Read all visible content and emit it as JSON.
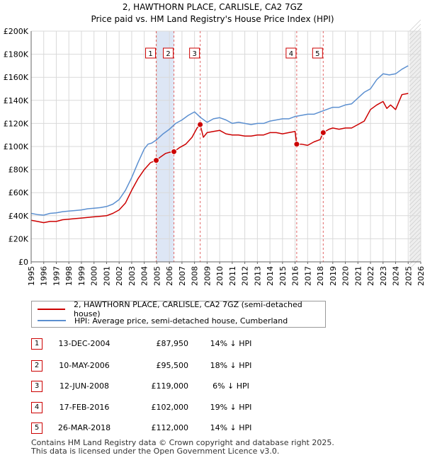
{
  "chart_data": {
    "type": "line",
    "title": "2, HAWTHORN PLACE, CARLISLE, CA2 7GZ",
    "subtitle": "Price paid vs. HM Land Registry's House Price Index (HPI)",
    "xlabel": "",
    "ylabel": "",
    "xlim": [
      1995,
      2026
    ],
    "ylim": [
      0,
      200000
    ],
    "x_ticks": [
      "1995",
      "1996",
      "1997",
      "1998",
      "1999",
      "2000",
      "2001",
      "2002",
      "2003",
      "2004",
      "2005",
      "2006",
      "2007",
      "2008",
      "2009",
      "2010",
      "2011",
      "2012",
      "2013",
      "2014",
      "2015",
      "2016",
      "2017",
      "2018",
      "2019",
      "2020",
      "2021",
      "2022",
      "2023",
      "2024",
      "2025",
      "2026"
    ],
    "y_ticks": [
      {
        "value": 0,
        "label": "£0"
      },
      {
        "value": 20000,
        "label": "£20K"
      },
      {
        "value": 40000,
        "label": "£40K"
      },
      {
        "value": 60000,
        "label": "£60K"
      },
      {
        "value": 80000,
        "label": "£80K"
      },
      {
        "value": 100000,
        "label": "£100K"
      },
      {
        "value": 120000,
        "label": "£120K"
      },
      {
        "value": 140000,
        "label": "£140K"
      },
      {
        "value": 160000,
        "label": "£160K"
      },
      {
        "value": 180000,
        "label": "£180K"
      },
      {
        "value": 200000,
        "label": "£200K"
      }
    ],
    "grid": true,
    "highlight_bands": [
      [
        2004.95,
        2006.36
      ]
    ],
    "future_region_start": 2025.1,
    "series": [
      {
        "name": "2, HAWTHORN PLACE, CARLISLE, CA2 7GZ (semi-detached house)",
        "color": "#cc0000",
        "x": [
          1995,
          1995.5,
          1996,
          1996.5,
          1997,
          1997.5,
          1998,
          1998.5,
          1999,
          1999.5,
          2000,
          2000.5,
          2001,
          2001.5,
          2002,
          2002.5,
          2003,
          2003.5,
          2004,
          2004.5,
          2004.95,
          2005.3,
          2005.7,
          2006,
          2006.36,
          2006.8,
          2007.3,
          2007.8,
          2008.2,
          2008.45,
          2008.7,
          2009,
          2009.5,
          2010,
          2010.5,
          2011,
          2011.5,
          2012,
          2012.5,
          2013,
          2013.5,
          2014,
          2014.5,
          2015,
          2015.5,
          2016.0,
          2016.13,
          2016.5,
          2017,
          2017.5,
          2018.0,
          2018.24,
          2018.7,
          2019,
          2019.5,
          2020,
          2020.5,
          2021,
          2021.5,
          2022,
          2022.5,
          2023,
          2023.3,
          2023.6,
          2024,
          2024.5,
          2025
        ],
        "y": [
          36000,
          35000,
          34000,
          35000,
          35000,
          36500,
          37000,
          37500,
          38000,
          38500,
          39000,
          39500,
          40000,
          42000,
          45000,
          51000,
          62000,
          72000,
          80000,
          86000,
          87950,
          91000,
          94000,
          95000,
          95500,
          99000,
          102000,
          108000,
          116000,
          119000,
          108000,
          112000,
          113000,
          114000,
          111000,
          110000,
          110000,
          109000,
          109000,
          110000,
          110000,
          112000,
          112000,
          111000,
          112000,
          113000,
          102000,
          102000,
          101000,
          104000,
          106000,
          112000,
          115000,
          116000,
          115000,
          116000,
          116000,
          119000,
          122000,
          132000,
          136000,
          139000,
          133000,
          136000,
          132000,
          145000,
          146000
        ]
      },
      {
        "name": "HPI: Average price, semi-detached house, Cumberland",
        "color": "#5b8fd0",
        "x": [
          1995,
          1995.5,
          1996,
          1996.5,
          1997,
          1997.5,
          1998,
          1998.5,
          1999,
          1999.5,
          2000,
          2000.5,
          2001,
          2001.5,
          2002,
          2002.5,
          2003,
          2003.5,
          2004,
          2004.3,
          2004.6,
          2005,
          2005.5,
          2006,
          2006.5,
          2007,
          2007.5,
          2008,
          2008.5,
          2009,
          2009.5,
          2010,
          2010.5,
          2011,
          2011.5,
          2012,
          2012.5,
          2013,
          2013.5,
          2014,
          2014.5,
          2015,
          2015.5,
          2016,
          2016.5,
          2017,
          2017.5,
          2018,
          2018.5,
          2019,
          2019.5,
          2020,
          2020.5,
          2021,
          2021.5,
          2022,
          2022.5,
          2023,
          2023.5,
          2024,
          2024.5,
          2025
        ],
        "y": [
          42000,
          41000,
          40500,
          42000,
          42500,
          43500,
          44000,
          44500,
          45000,
          46000,
          46500,
          47000,
          48000,
          50000,
          54000,
          62000,
          73000,
          86000,
          98000,
          102000,
          103000,
          106000,
          111000,
          115000,
          120000,
          123000,
          127000,
          130000,
          125000,
          121000,
          124000,
          125000,
          123000,
          120000,
          121000,
          120000,
          119000,
          120000,
          120000,
          122000,
          123000,
          124000,
          124000,
          126000,
          127000,
          128000,
          128000,
          130000,
          132000,
          134000,
          134000,
          136000,
          137000,
          142000,
          147000,
          150000,
          158000,
          163000,
          162000,
          163000,
          167000,
          170000
        ]
      }
    ],
    "transactions": [
      {
        "num": "1",
        "date": "13-DEC-2004",
        "price": "£87,950",
        "hpi": "14% ↓ HPI",
        "x": 2004.95,
        "y": 87950
      },
      {
        "num": "2",
        "date": "10-MAY-2006",
        "price": "£95,500",
        "hpi": "18% ↓ HPI",
        "x": 2006.36,
        "y": 95500
      },
      {
        "num": "3",
        "date": "12-JUN-2008",
        "price": "£119,000",
        "hpi": "6% ↓ HPI",
        "x": 2008.45,
        "y": 119000
      },
      {
        "num": "4",
        "date": "17-FEB-2016",
        "price": "£102,000",
        "hpi": "19% ↓ HPI",
        "x": 2016.13,
        "y": 102000
      },
      {
        "num": "5",
        "date": "26-MAR-2018",
        "price": "£112,000",
        "hpi": "14% ↓ HPI",
        "x": 2018.24,
        "y": 112000
      }
    ]
  },
  "legend": {
    "property": "2, HAWTHORN PLACE, CARLISLE, CA2 7GZ (semi-detached house)",
    "hpi": "HPI: Average price, semi-detached house, Cumberland"
  },
  "colors": {
    "property": "#cc0000",
    "hpi": "#5b8fd0"
  },
  "footer": {
    "line1": "Contains HM Land Registry data © Crown copyright and database right 2025.",
    "line2": "This data is licensed under the Open Government Licence v3.0."
  }
}
